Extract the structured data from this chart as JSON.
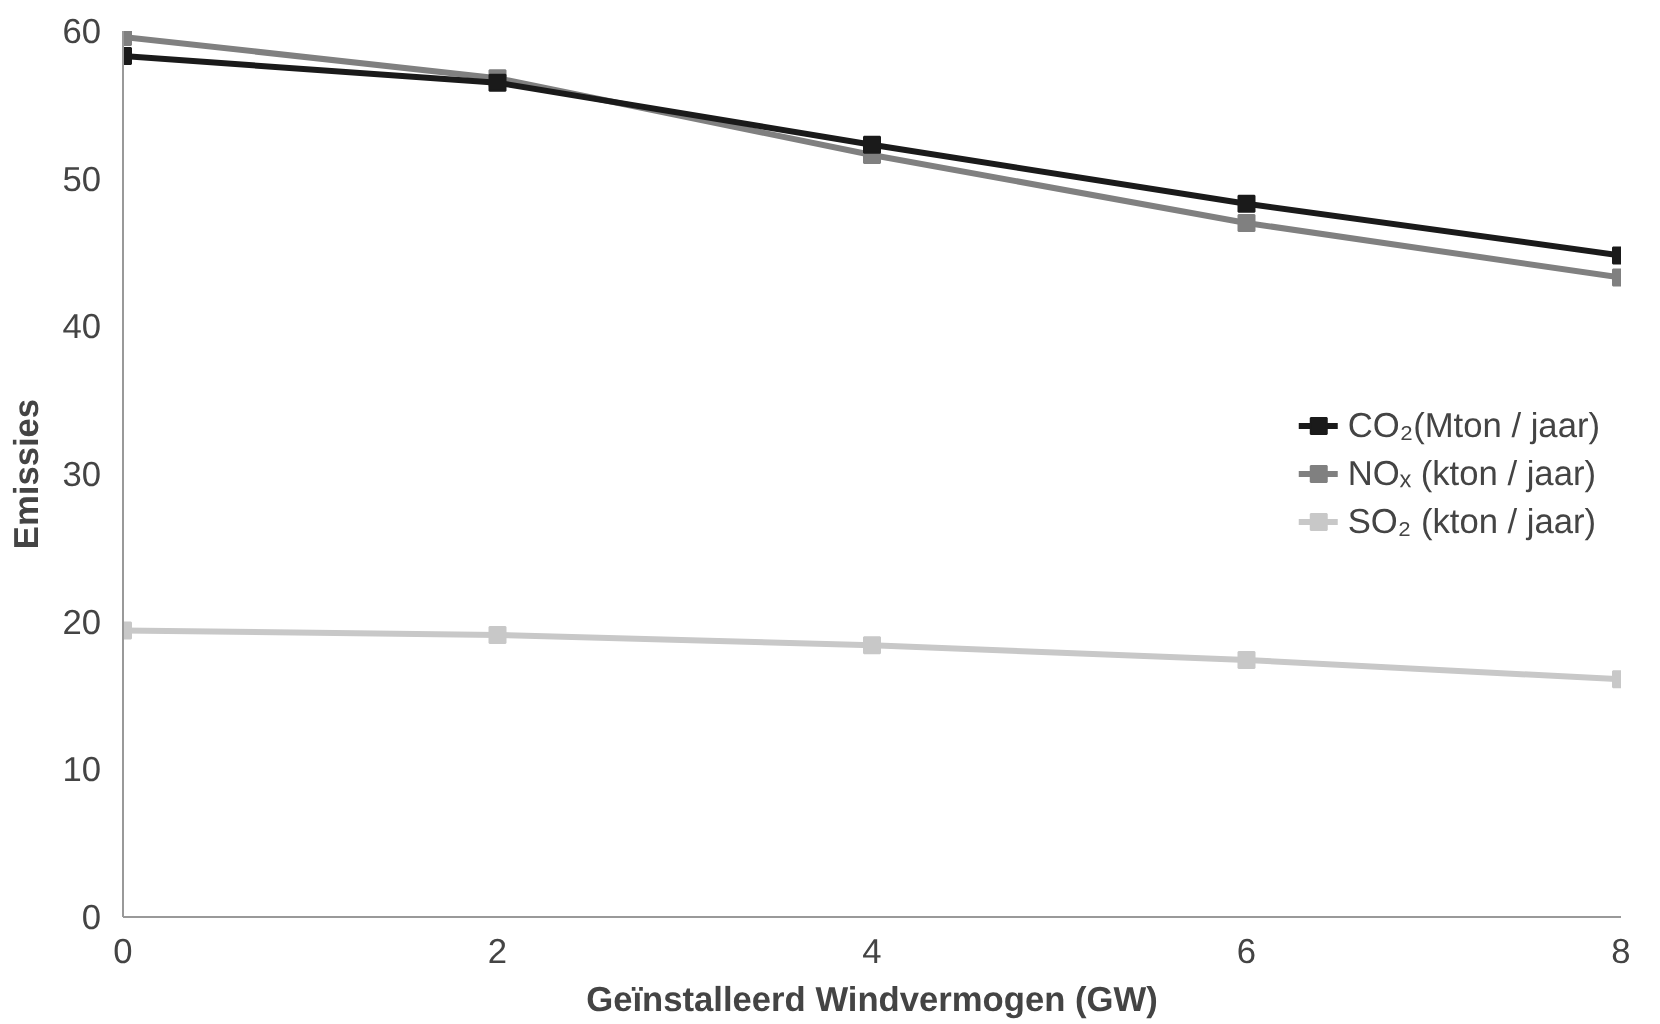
{
  "chart_data": {
    "type": "line",
    "xlabel": "Geïnstalleerd Windvermogen (GW)",
    "ylabel": "Emissies",
    "x": [
      0,
      2,
      4,
      6,
      8
    ],
    "series": [
      {
        "name": "CO₂(Mton / jaar)",
        "color": "#1a1a1a",
        "values": [
          58.3,
          56.5,
          52.3,
          48.3,
          44.8
        ]
      },
      {
        "name": "NOₓ (kton / jaar)",
        "color": "#808080",
        "values": [
          59.6,
          56.8,
          51.6,
          47.0,
          43.3
        ]
      },
      {
        "name": "SO₂ (kton / jaar)",
        "color": "#c8c8c8",
        "values": [
          19.4,
          19.1,
          18.4,
          17.4,
          16.1
        ]
      }
    ],
    "xlim": [
      0,
      8
    ],
    "ylim": [
      0,
      60
    ],
    "xticks": [
      0,
      2,
      4,
      6,
      8
    ],
    "yticks": [
      0,
      10,
      20,
      30,
      40,
      50,
      60
    ],
    "grid": false,
    "legend": "right",
    "marker": "square",
    "line_style": "solid"
  }
}
